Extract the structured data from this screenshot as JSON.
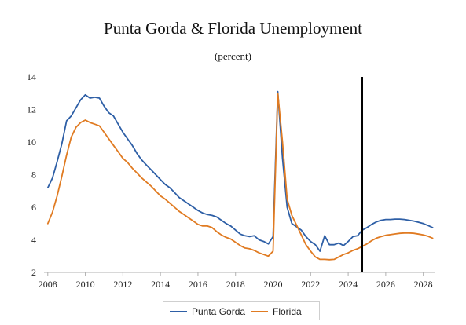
{
  "chart_data": {
    "type": "line",
    "title": "Punta Gorda & Florida Unemployment",
    "subtitle": "(percent)",
    "xlabel": "",
    "ylabel": "",
    "xlim": [
      2007.8,
      2028.6
    ],
    "ylim": [
      2,
      14
    ],
    "xticks": [
      2008,
      2010,
      2012,
      2014,
      2016,
      2018,
      2020,
      2022,
      2024,
      2026,
      2028
    ],
    "yticks": [
      2,
      4,
      6,
      8,
      10,
      12,
      14
    ],
    "grid": false,
    "legend_position": "bottom-center",
    "forecast_marker_x": 2024.75,
    "series": [
      {
        "name": "Punta Gorda",
        "color": "#2e5fa6",
        "points": [
          [
            2008.0,
            7.2
          ],
          [
            2008.25,
            7.8
          ],
          [
            2008.5,
            8.8
          ],
          [
            2008.75,
            9.9
          ],
          [
            2009.0,
            11.3
          ],
          [
            2009.25,
            11.6
          ],
          [
            2009.5,
            12.1
          ],
          [
            2009.75,
            12.6
          ],
          [
            2010.0,
            12.9
          ],
          [
            2010.25,
            12.7
          ],
          [
            2010.5,
            12.75
          ],
          [
            2010.75,
            12.7
          ],
          [
            2011.0,
            12.2
          ],
          [
            2011.25,
            11.8
          ],
          [
            2011.5,
            11.6
          ],
          [
            2011.75,
            11.1
          ],
          [
            2012.0,
            10.6
          ],
          [
            2012.25,
            10.2
          ],
          [
            2012.5,
            9.8
          ],
          [
            2012.75,
            9.3
          ],
          [
            2013.0,
            8.9
          ],
          [
            2013.25,
            8.6
          ],
          [
            2013.5,
            8.3
          ],
          [
            2013.75,
            8.0
          ],
          [
            2014.0,
            7.7
          ],
          [
            2014.25,
            7.4
          ],
          [
            2014.5,
            7.2
          ],
          [
            2014.75,
            6.9
          ],
          [
            2015.0,
            6.6
          ],
          [
            2015.25,
            6.4
          ],
          [
            2015.5,
            6.2
          ],
          [
            2015.75,
            6.0
          ],
          [
            2016.0,
            5.8
          ],
          [
            2016.25,
            5.65
          ],
          [
            2016.5,
            5.55
          ],
          [
            2016.75,
            5.5
          ],
          [
            2017.0,
            5.4
          ],
          [
            2017.25,
            5.2
          ],
          [
            2017.5,
            5.0
          ],
          [
            2017.75,
            4.85
          ],
          [
            2018.0,
            4.6
          ],
          [
            2018.25,
            4.35
          ],
          [
            2018.5,
            4.25
          ],
          [
            2018.75,
            4.2
          ],
          [
            2019.0,
            4.25
          ],
          [
            2019.25,
            4.0
          ],
          [
            2019.5,
            3.9
          ],
          [
            2019.75,
            3.75
          ],
          [
            2020.0,
            4.2
          ],
          [
            2020.25,
            13.1
          ],
          [
            2020.5,
            9.0
          ],
          [
            2020.75,
            6.0
          ],
          [
            2021.0,
            5.0
          ],
          [
            2021.25,
            4.8
          ],
          [
            2021.5,
            4.6
          ],
          [
            2021.75,
            4.2
          ],
          [
            2022.0,
            3.9
          ],
          [
            2022.25,
            3.7
          ],
          [
            2022.5,
            3.3
          ],
          [
            2022.75,
            4.25
          ],
          [
            2023.0,
            3.7
          ],
          [
            2023.25,
            3.7
          ],
          [
            2023.5,
            3.8
          ],
          [
            2023.75,
            3.65
          ],
          [
            2024.0,
            3.9
          ],
          [
            2024.25,
            4.2
          ],
          [
            2024.5,
            4.25
          ],
          [
            2024.75,
            4.6
          ],
          [
            2025.0,
            4.75
          ],
          [
            2025.25,
            4.95
          ],
          [
            2025.5,
            5.1
          ],
          [
            2025.75,
            5.2
          ],
          [
            2026.0,
            5.25
          ],
          [
            2026.25,
            5.25
          ],
          [
            2026.5,
            5.27
          ],
          [
            2026.75,
            5.27
          ],
          [
            2027.0,
            5.25
          ],
          [
            2027.25,
            5.2
          ],
          [
            2027.5,
            5.15
          ],
          [
            2027.75,
            5.08
          ],
          [
            2028.0,
            5.0
          ],
          [
            2028.25,
            4.88
          ],
          [
            2028.5,
            4.75
          ]
        ]
      },
      {
        "name": "Florida",
        "color": "#e07b22",
        "points": [
          [
            2008.0,
            5.0
          ],
          [
            2008.25,
            5.7
          ],
          [
            2008.5,
            6.7
          ],
          [
            2008.75,
            7.9
          ],
          [
            2009.0,
            9.2
          ],
          [
            2009.25,
            10.3
          ],
          [
            2009.5,
            10.9
          ],
          [
            2009.75,
            11.2
          ],
          [
            2010.0,
            11.35
          ],
          [
            2010.25,
            11.2
          ],
          [
            2010.5,
            11.1
          ],
          [
            2010.75,
            11.0
          ],
          [
            2011.0,
            10.6
          ],
          [
            2011.25,
            10.2
          ],
          [
            2011.5,
            9.8
          ],
          [
            2011.75,
            9.4
          ],
          [
            2012.0,
            9.0
          ],
          [
            2012.25,
            8.75
          ],
          [
            2012.5,
            8.4
          ],
          [
            2012.75,
            8.1
          ],
          [
            2013.0,
            7.8
          ],
          [
            2013.25,
            7.55
          ],
          [
            2013.5,
            7.3
          ],
          [
            2013.75,
            7.0
          ],
          [
            2014.0,
            6.7
          ],
          [
            2014.25,
            6.5
          ],
          [
            2014.5,
            6.25
          ],
          [
            2014.75,
            6.0
          ],
          [
            2015.0,
            5.75
          ],
          [
            2015.25,
            5.55
          ],
          [
            2015.5,
            5.35
          ],
          [
            2015.75,
            5.15
          ],
          [
            2016.0,
            4.95
          ],
          [
            2016.25,
            4.85
          ],
          [
            2016.5,
            4.85
          ],
          [
            2016.75,
            4.75
          ],
          [
            2017.0,
            4.5
          ],
          [
            2017.25,
            4.3
          ],
          [
            2017.5,
            4.15
          ],
          [
            2017.75,
            4.05
          ],
          [
            2018.0,
            3.85
          ],
          [
            2018.25,
            3.65
          ],
          [
            2018.5,
            3.5
          ],
          [
            2018.75,
            3.45
          ],
          [
            2019.0,
            3.35
          ],
          [
            2019.25,
            3.2
          ],
          [
            2019.5,
            3.1
          ],
          [
            2019.75,
            3.0
          ],
          [
            2020.0,
            3.3
          ],
          [
            2020.25,
            13.0
          ],
          [
            2020.5,
            10.0
          ],
          [
            2020.75,
            6.5
          ],
          [
            2021.0,
            5.5
          ],
          [
            2021.25,
            4.9
          ],
          [
            2021.5,
            4.3
          ],
          [
            2021.75,
            3.7
          ],
          [
            2022.0,
            3.3
          ],
          [
            2022.25,
            2.95
          ],
          [
            2022.5,
            2.8
          ],
          [
            2022.75,
            2.8
          ],
          [
            2023.0,
            2.78
          ],
          [
            2023.25,
            2.8
          ],
          [
            2023.5,
            2.95
          ],
          [
            2023.75,
            3.1
          ],
          [
            2024.0,
            3.2
          ],
          [
            2024.25,
            3.35
          ],
          [
            2024.5,
            3.45
          ],
          [
            2024.75,
            3.6
          ],
          [
            2025.0,
            3.75
          ],
          [
            2025.25,
            3.95
          ],
          [
            2025.5,
            4.1
          ],
          [
            2025.75,
            4.2
          ],
          [
            2026.0,
            4.28
          ],
          [
            2026.25,
            4.32
          ],
          [
            2026.5,
            4.36
          ],
          [
            2026.75,
            4.4
          ],
          [
            2027.0,
            4.42
          ],
          [
            2027.25,
            4.42
          ],
          [
            2027.5,
            4.4
          ],
          [
            2027.75,
            4.35
          ],
          [
            2028.0,
            4.3
          ],
          [
            2028.25,
            4.22
          ],
          [
            2028.5,
            4.1
          ]
        ]
      }
    ]
  }
}
